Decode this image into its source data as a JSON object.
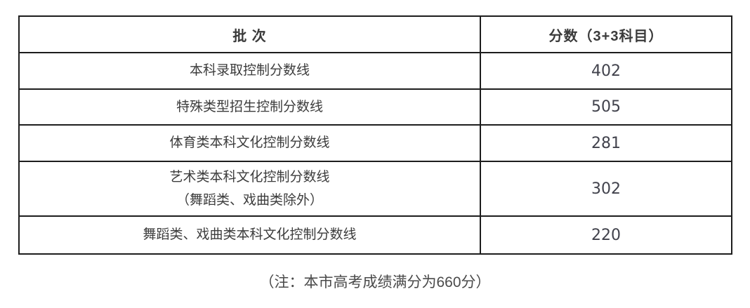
{
  "table": {
    "headers": {
      "batch": "批 次",
      "score": "分数（3+3科目）"
    },
    "rows": [
      {
        "label": "本科录取控制分数线",
        "value": "402"
      },
      {
        "label": "特殊类型招生控制分数线",
        "value": "505"
      },
      {
        "label": "体育类本科文化控制分数线",
        "value": "281"
      },
      {
        "label": "艺术类本科文化控制分数线\n（舞蹈类、戏曲类除外）",
        "value": "302"
      },
      {
        "label": "舞蹈类、戏曲类本科文化控制分数线",
        "value": "220"
      }
    ]
  },
  "note": "（注：本市高考成绩满分为660分）",
  "colors": {
    "border": "#1d1d1d",
    "text": "#3c3c3c",
    "note_text": "#4a4a4a",
    "background": "#ffffff"
  }
}
